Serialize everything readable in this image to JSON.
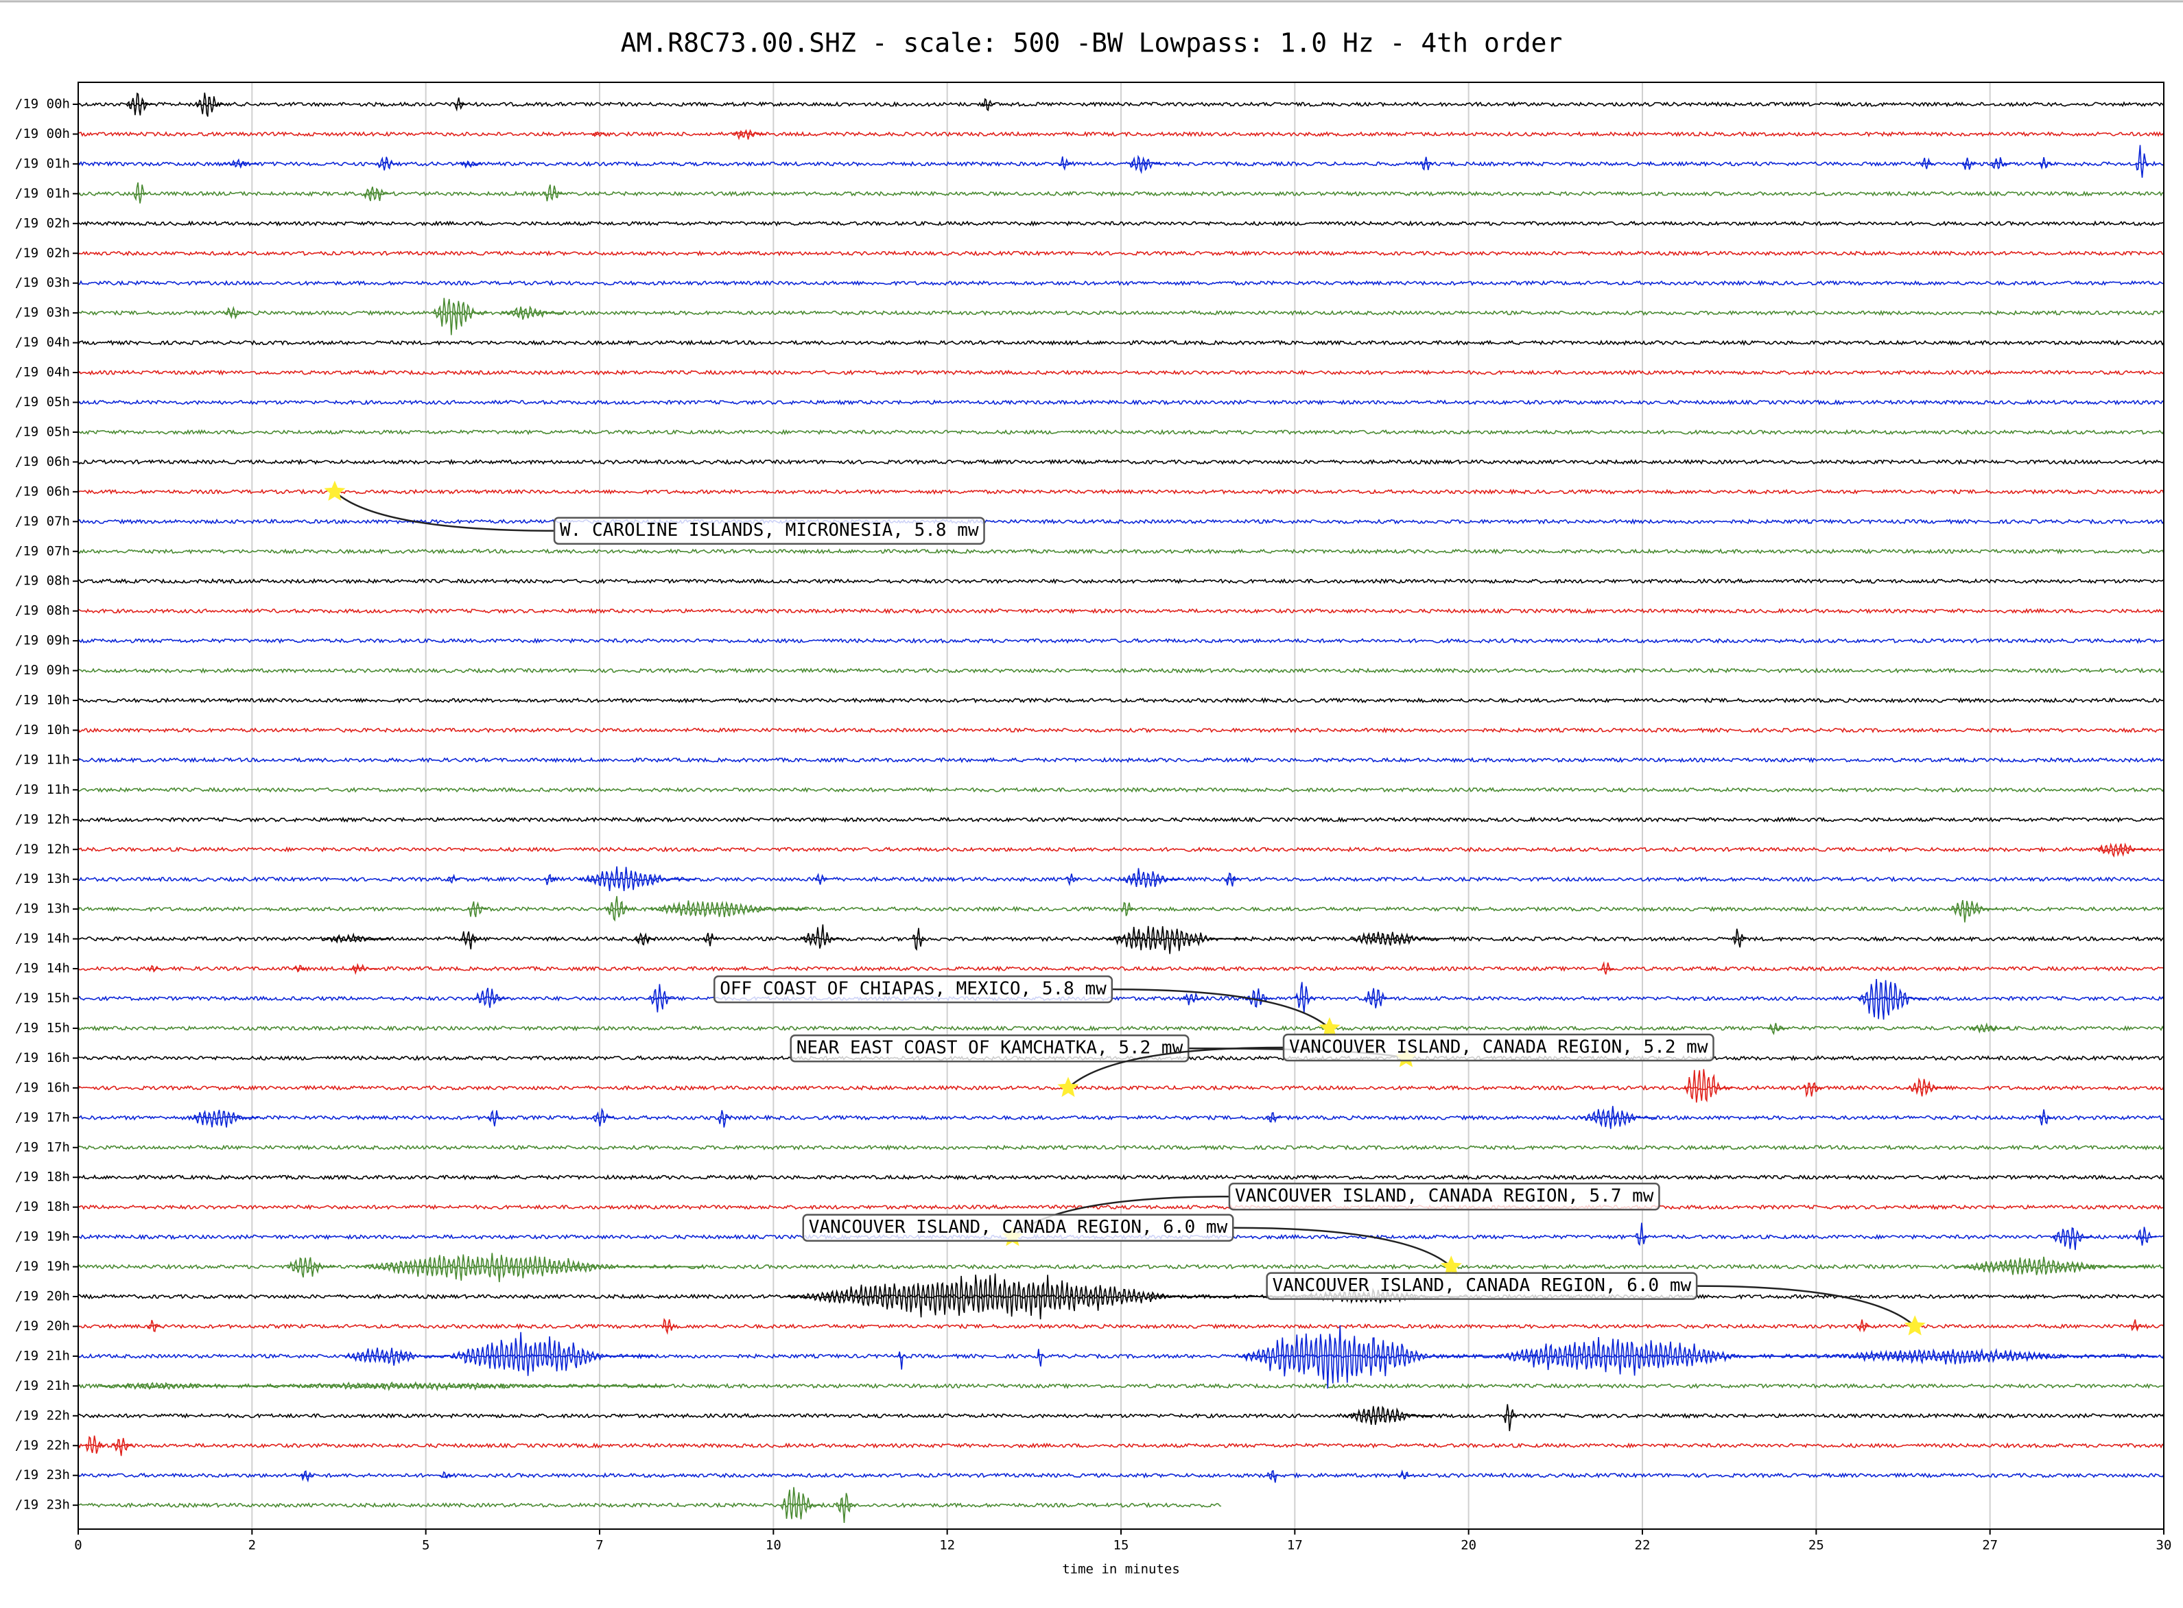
{
  "chart_data": {
    "type": "helicorder",
    "title": "AM.R8C73.00.SHZ - scale: 500 -BW Lowpass: 1.0 Hz - 4th order",
    "xlabel": "time in minutes",
    "xlim": [
      0,
      30
    ],
    "xticks": [
      0,
      {
        "value": 2.5,
        "label": "2"
      },
      5,
      {
        "value": 7.5,
        "label": "7"
      },
      10,
      {
        "value": 12.5,
        "label": "12"
      },
      15,
      {
        "value": 17.5,
        "label": "17"
      },
      20,
      {
        "value": 22.5,
        "label": "22"
      },
      25,
      {
        "value": 27.5,
        "label": "27"
      },
      30
    ],
    "grid": true,
    "colors": [
      "#000000",
      "#e0201a",
      "#0a24d6",
      "#4a8a32"
    ],
    "categories": [
      "/19 00h",
      "/19 00h",
      "/19 01h",
      "/19 01h",
      "/19 02h",
      "/19 02h",
      "/19 03h",
      "/19 03h",
      "/19 04h",
      "/19 04h",
      "/19 05h",
      "/19 05h",
      "/19 06h",
      "/19 06h",
      "/19 07h",
      "/19 07h",
      "/19 08h",
      "/19 08h",
      "/19 09h",
      "/19 09h",
      "/19 10h",
      "/19 10h",
      "/19 11h",
      "/19 11h",
      "/19 12h",
      "/19 12h",
      "/19 13h",
      "/19 13h",
      "/19 14h",
      "/19 14h",
      "/19 15h",
      "/19 15h",
      "/19 16h",
      "/19 16h",
      "/19 17h",
      "/19 17h",
      "/19 18h",
      "/19 18h",
      "/19 19h",
      "/19 19h",
      "/19 20h",
      "/19 20h",
      "/19 21h",
      "/19 21h",
      "/19 22h",
      "/19 22h",
      "/19 23h",
      "/19 23h"
    ],
    "last_trace_end": 16.46,
    "events": [
      {
        "label": "W. CAROLINE ISLANDS, MICRONESIA, 5.8 mw",
        "minute": 3.69,
        "row": 13
      },
      {
        "label": "OFF COAST OF CHIAPAS, MEXICO, 5.8 mw",
        "minute": 18.0,
        "row": 31
      },
      {
        "label": "NEAR EAST COAST OF KAMCHATKA, 5.2 mw",
        "minute": 19.1,
        "row": 32
      },
      {
        "label": "VANCOUVER ISLAND, CANADA REGION, 5.2 mw",
        "minute": 14.24,
        "row": 33
      },
      {
        "label": "VANCOUVER ISLAND, CANADA REGION, 5.7 mw",
        "minute": 13.44,
        "row": 38
      },
      {
        "label": "VANCOUVER ISLAND, CANADA REGION, 6.0 mw",
        "minute": 19.75,
        "row": 39
      },
      {
        "label": "VANCOUVER ISLAND, CANADA REGION, 6.0 mw",
        "minute": 26.42,
        "row": 41
      }
    ],
    "bursts": [
      [
        0,
        0.7,
        1.1,
        0.6
      ],
      [
        0,
        1.7,
        2.1,
        0.7
      ],
      [
        0,
        5.4,
        5.6,
        0.35
      ],
      [
        0,
        13.0,
        13.2,
        0.4
      ],
      [
        1,
        7.4,
        7.6,
        0.2
      ],
      [
        1,
        9.4,
        9.9,
        0.25
      ],
      [
        2,
        2.1,
        2.6,
        0.2
      ],
      [
        2,
        4.3,
        4.6,
        0.45
      ],
      [
        2,
        5.5,
        5.8,
        0.2
      ],
      [
        2,
        14.1,
        14.3,
        0.4
      ],
      [
        2,
        15.1,
        15.6,
        0.45
      ],
      [
        2,
        19.3,
        19.5,
        0.4
      ],
      [
        2,
        26.5,
        26.7,
        0.3
      ],
      [
        2,
        27.1,
        27.3,
        0.4
      ],
      [
        2,
        27.5,
        27.8,
        0.35
      ],
      [
        2,
        28.2,
        28.4,
        0.3
      ],
      [
        2,
        29.6,
        29.8,
        0.8
      ],
      [
        3,
        0.8,
        1.0,
        0.8
      ],
      [
        3,
        4.1,
        4.5,
        0.5
      ],
      [
        3,
        6.7,
        7.0,
        0.5
      ],
      [
        7,
        2.1,
        2.4,
        0.3
      ],
      [
        7,
        5.1,
        5.9,
        0.9
      ],
      [
        7,
        6.1,
        7.0,
        0.3
      ],
      [
        25,
        29.0,
        29.8,
        0.35
      ],
      [
        26,
        5.3,
        5.5,
        0.2
      ],
      [
        26,
        6.7,
        6.9,
        0.3
      ],
      [
        26,
        7.2,
        8.9,
        0.5
      ],
      [
        26,
        10.6,
        10.8,
        0.3
      ],
      [
        26,
        14.2,
        14.4,
        0.3
      ],
      [
        26,
        15.0,
        15.9,
        0.5
      ],
      [
        26,
        16.5,
        16.7,
        0.4
      ],
      [
        27,
        5.6,
        5.9,
        0.5
      ],
      [
        27,
        7.6,
        8.0,
        0.6
      ],
      [
        27,
        8.2,
        10.5,
        0.4
      ],
      [
        27,
        15.0,
        15.2,
        0.5
      ],
      [
        27,
        26.9,
        27.6,
        0.5
      ],
      [
        28,
        3.5,
        4.5,
        0.2
      ],
      [
        28,
        5.5,
        5.8,
        0.5
      ],
      [
        28,
        8.0,
        8.3,
        0.4
      ],
      [
        28,
        9.0,
        9.2,
        0.4
      ],
      [
        28,
        10.4,
        11.0,
        0.6
      ],
      [
        28,
        12.0,
        12.2,
        0.6
      ],
      [
        28,
        14.8,
        16.8,
        0.6
      ],
      [
        28,
        18.3,
        19.6,
        0.4
      ],
      [
        28,
        23.8,
        24.0,
        0.5
      ],
      [
        29,
        1.0,
        1.2,
        0.2
      ],
      [
        29,
        3.1,
        3.3,
        0.2
      ],
      [
        29,
        3.9,
        4.3,
        0.2
      ],
      [
        29,
        21.9,
        22.1,
        0.4
      ],
      [
        30,
        5.7,
        6.2,
        0.6
      ],
      [
        30,
        8.2,
        8.6,
        0.6
      ],
      [
        30,
        15.9,
        16.2,
        0.3
      ],
      [
        30,
        16.8,
        17.2,
        0.6
      ],
      [
        30,
        17.5,
        17.8,
        0.7
      ],
      [
        30,
        18.5,
        18.9,
        0.6
      ],
      [
        30,
        25.6,
        26.6,
        1.0
      ],
      [
        31,
        24.3,
        24.6,
        0.3
      ],
      [
        31,
        27.2,
        27.8,
        0.2
      ],
      [
        33,
        23.1,
        23.8,
        1.0
      ],
      [
        33,
        24.8,
        25.1,
        0.5
      ],
      [
        33,
        26.3,
        26.9,
        0.4
      ],
      [
        34,
        1.6,
        2.6,
        0.5
      ],
      [
        34,
        5.9,
        6.1,
        0.5
      ],
      [
        34,
        7.4,
        7.7,
        0.4
      ],
      [
        34,
        9.2,
        9.4,
        0.5
      ],
      [
        34,
        17.1,
        17.3,
        0.3
      ],
      [
        34,
        21.6,
        22.7,
        0.5
      ],
      [
        34,
        28.2,
        28.4,
        0.5
      ],
      [
        38,
        22.4,
        22.6,
        0.5
      ],
      [
        38,
        28.4,
        29.0,
        0.6
      ],
      [
        38,
        29.6,
        29.9,
        0.5
      ],
      [
        39,
        3.0,
        3.7,
        0.5
      ],
      [
        39,
        4.0,
        9.0,
        0.6
      ],
      [
        39,
        27.0,
        29.8,
        0.4
      ],
      [
        40,
        10.2,
        17.5,
        0.9
      ],
      [
        40,
        17.5,
        20.0,
        0.3
      ],
      [
        41,
        1.0,
        1.2,
        0.3
      ],
      [
        41,
        8.4,
        8.6,
        0.5
      ],
      [
        41,
        25.6,
        25.8,
        0.4
      ],
      [
        41,
        29.5,
        29.7,
        0.3
      ],
      [
        42,
        3.8,
        5.3,
        0.4
      ],
      [
        42,
        5.3,
        8.3,
        0.9
      ],
      [
        42,
        11.8,
        11.9,
        0.5
      ],
      [
        42,
        13.8,
        13.9,
        0.7
      ],
      [
        42,
        16.7,
        20.3,
        1.2
      ],
      [
        42,
        20.3,
        25.0,
        0.8
      ],
      [
        42,
        25.0,
        29.9,
        0.3
      ],
      [
        43,
        0.3,
        2.5,
        0.15
      ],
      [
        43,
        2.5,
        8.5,
        0.15
      ],
      [
        44,
        18.2,
        19.5,
        0.5
      ],
      [
        44,
        20.5,
        20.7,
        0.7
      ],
      [
        45,
        0.1,
        0.4,
        0.6
      ],
      [
        45,
        0.5,
        0.8,
        0.5
      ],
      [
        46,
        3.2,
        3.4,
        0.3
      ],
      [
        46,
        5.2,
        5.4,
        0.2
      ],
      [
        46,
        17.1,
        17.3,
        0.4
      ],
      [
        46,
        19.0,
        19.2,
        0.3
      ],
      [
        47,
        10.1,
        10.7,
        0.9
      ],
      [
        47,
        10.9,
        11.2,
        0.8
      ]
    ]
  }
}
